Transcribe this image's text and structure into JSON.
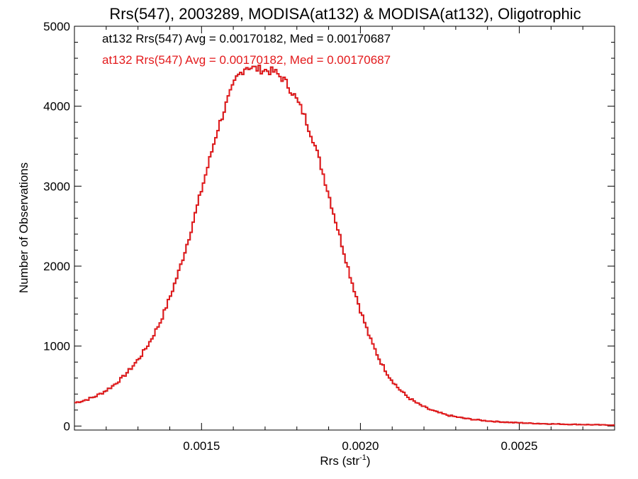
{
  "chart_data": {
    "type": "line",
    "title": "Rrs(547), 2003289, MODISA(at132) & MODISA(at132), Oligotrophic",
    "xlabel_main": "Rrs (str",
    "xlabel_sup": "-1",
    "xlabel_close": ")",
    "ylabel": "Number of Observations",
    "xlim": [
      0.0011,
      0.0028
    ],
    "ylim": [
      -50,
      5000
    ],
    "x_ticks": [
      0.0015,
      0.002,
      0.0025
    ],
    "x_tick_labels": [
      "0.0015",
      "0.0020",
      "0.0025"
    ],
    "y_ticks": [
      0,
      1000,
      2000,
      3000,
      4000,
      5000
    ],
    "y_tick_labels": [
      "0",
      "1000",
      "2000",
      "3000",
      "4000",
      "5000"
    ],
    "grid": false,
    "annotations": [
      "at132 Rrs(547) Avg = 0.00170182, Med = 0.00170687",
      "at132 Rrs(547) Avg = 0.00170182, Med = 0.00170687"
    ],
    "series": [
      {
        "color_main": "#e31a1c",
        "color_under": "#000000",
        "x": [
          0.0011,
          0.00113,
          0.00116,
          0.00119,
          0.00122,
          0.00125,
          0.00128,
          0.00131,
          0.00134,
          0.00137,
          0.0014,
          0.00143,
          0.00146,
          0.00149,
          0.00152,
          0.00155,
          0.00158,
          0.00161,
          0.00164,
          0.00167,
          0.0017,
          0.00173,
          0.00176,
          0.00179,
          0.00182,
          0.00185,
          0.00188,
          0.00191,
          0.00194,
          0.00197,
          0.002,
          0.00203,
          0.00206,
          0.00209,
          0.00212,
          0.00215,
          0.00218,
          0.00221,
          0.00224,
          0.00227,
          0.0023,
          0.00233,
          0.00236,
          0.00239,
          0.00242,
          0.00245,
          0.00248,
          0.00251,
          0.00254,
          0.00257,
          0.0026,
          0.00263,
          0.00266,
          0.00269,
          0.00272,
          0.00275,
          0.00278,
          0.0028
        ],
        "y": [
          290,
          320,
          360,
          420,
          500,
          600,
          730,
          880,
          1070,
          1300,
          1600,
          1950,
          2350,
          2800,
          3250,
          3700,
          4050,
          4350,
          4500,
          4470,
          4450,
          4430,
          4330,
          4150,
          3920,
          3600,
          3200,
          2750,
          2300,
          1850,
          1450,
          1100,
          830,
          620,
          470,
          360,
          280,
          220,
          175,
          140,
          115,
          95,
          80,
          68,
          58,
          50,
          44,
          39,
          34,
          30,
          27,
          24,
          21,
          19,
          17,
          15,
          13,
          12
        ]
      }
    ]
  }
}
